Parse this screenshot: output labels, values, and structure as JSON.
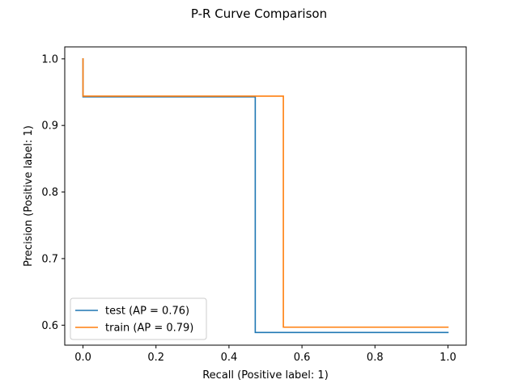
{
  "chart_data": {
    "type": "line",
    "title": "P-R Curve Comparison",
    "xlabel": "Recall (Positive label: 1)",
    "ylabel": "Precision (Positive label: 1)",
    "xlim": [
      -0.05,
      1.05
    ],
    "ylim": [
      0.57,
      1.018
    ],
    "xticks": [
      0.0,
      0.2,
      0.4,
      0.6,
      0.8,
      1.0
    ],
    "xtick_labels": [
      "0.0",
      "0.2",
      "0.4",
      "0.6",
      "0.8",
      "1.0"
    ],
    "yticks": [
      0.6,
      0.7,
      0.8,
      0.9,
      1.0
    ],
    "ytick_labels": [
      "0.6",
      "0.7",
      "0.8",
      "0.9",
      "1.0"
    ],
    "grid": false,
    "legend_position": "lower-left",
    "series": [
      {
        "name": "test (AP = 0.76)",
        "color": "#1f77b4",
        "recall": [
          0.0,
          0.0,
          0.472,
          0.472,
          1.0
        ],
        "precision": [
          1.0,
          0.943,
          0.943,
          0.589,
          0.589
        ]
      },
      {
        "name": "train (AP = 0.79)",
        "color": "#ff7f0e",
        "recall": [
          0.0,
          0.0,
          0.549,
          0.549,
          1.0
        ],
        "precision": [
          1.0,
          0.944,
          0.944,
          0.597,
          0.597
        ]
      }
    ]
  }
}
